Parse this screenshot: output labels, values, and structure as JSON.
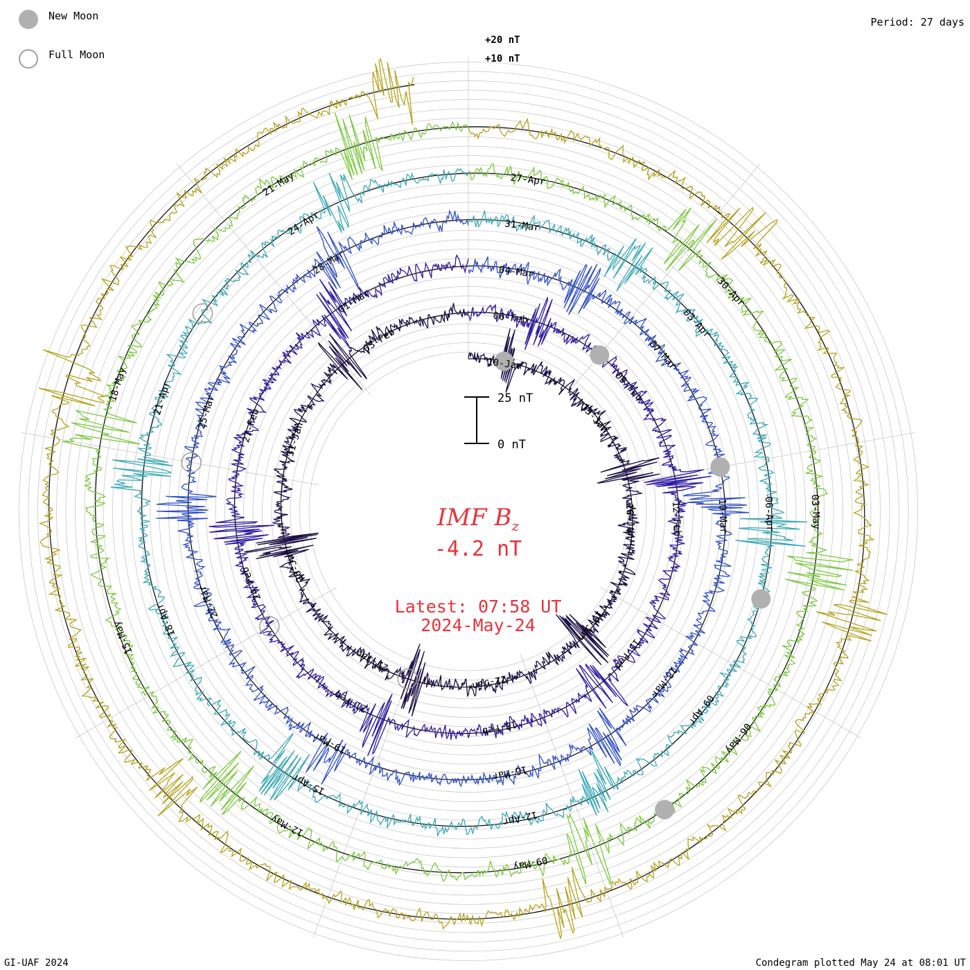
{
  "legend": {
    "new_moon_label": "New Moon",
    "full_moon_label": "Full Moon"
  },
  "period_label": "Period: 27 days",
  "footer": {
    "left": "GI-UAF 2024",
    "right": "Condegram plotted May 24 at 08:01 UT"
  },
  "center": {
    "quantity": "IMF B",
    "quantity_sub": "z",
    "value": "-4.2 nT",
    "latest": "Latest: 07:58 UT",
    "date": "2024-May-24"
  },
  "scale_bar": {
    "top_label": "25 nT",
    "bottom_label": "0 nT"
  },
  "ring_labels": {
    "plus20": "+20 nT",
    "plus10": "+10 nT"
  },
  "colors": {
    "accent": "#e8323a",
    "grid": "#c8c8c8",
    "moon": "#b0b0b0",
    "cycles": [
      "#1a0f45",
      "#2b1aa0",
      "#2f4ec7",
      "#3aa9b5",
      "#7ac93b",
      "#b5a21a",
      "#c77b12",
      "#c64a12",
      "#c4141a"
    ]
  },
  "chart_data": {
    "type": "line",
    "title": "IMF Bz",
    "period_days": 27,
    "units": "nT",
    "cycles": [
      {
        "start": "2024-01-10",
        "labels": [
          "10-Jan",
          "13-Jan",
          "16-Jan",
          "19-Jan",
          "22-Jan",
          "25-Jan",
          "28-Jan",
          "31-Jan",
          "03-Feb"
        ]
      },
      {
        "start": "2024-02-06",
        "labels": [
          "06-Feb",
          "09-Feb",
          "12-Feb",
          "15-Feb",
          "18-Feb",
          "21-Feb",
          "24-Feb",
          "27-Feb",
          "01-Mar"
        ]
      },
      {
        "start": "2024-03-04",
        "labels": [
          "04-Mar",
          "07-Mar",
          "10-Mar",
          "13-Mar",
          "16-Mar",
          "19-Mar",
          "22-Mar",
          "25-Mar",
          "28-Mar"
        ]
      },
      {
        "start": "2024-03-31",
        "labels": [
          "31-Mar",
          "03-Apr",
          "06-Apr",
          "09-Apr",
          "12-Apr",
          "15-Apr",
          "18-Apr",
          "21-Apr",
          "24-Apr"
        ]
      },
      {
        "start": "2024-04-27",
        "labels": [
          "27-Apr",
          "30-Apr",
          "03-May",
          "06-May",
          "09-May",
          "12-May",
          "15-May",
          "18-May",
          "21-May"
        ]
      }
    ],
    "new_moons": [
      "2024-01-11",
      "2024-02-09",
      "2024-03-10",
      "2024-04-08",
      "2024-05-08"
    ],
    "full_moons": [
      "2024-01-25",
      "2024-02-24",
      "2024-03-25",
      "2024-04-23"
    ],
    "latest_value": -4.2,
    "scale_reference": [
      0,
      25
    ]
  }
}
